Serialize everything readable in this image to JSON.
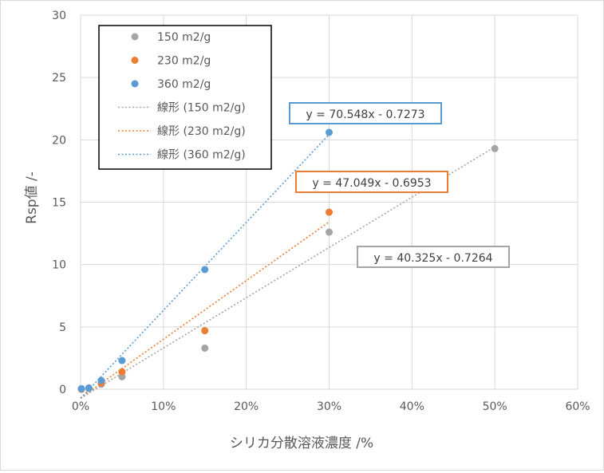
{
  "chart_data": {
    "type": "scatter",
    "title": "",
    "xlabel": "シリカ分散溶液濃度 /%",
    "ylabel": "Rsp値 /-",
    "xlim": [
      0,
      0.6
    ],
    "ylim": [
      0,
      30
    ],
    "x_ticks": [
      0,
      0.1,
      0.2,
      0.3,
      0.4,
      0.5,
      0.6
    ],
    "x_tick_labels": [
      "0%",
      "10%",
      "20%",
      "30%",
      "40%",
      "50%",
      "60%"
    ],
    "y_ticks": [
      0,
      5,
      10,
      15,
      20,
      25,
      30
    ],
    "y_tick_labels": [
      "0",
      "5",
      "10",
      "15",
      "20",
      "25",
      "30"
    ],
    "grid": "vertical and horizontal major gridlines",
    "legend_position": "top-left",
    "series": [
      {
        "name": "150 m2/g",
        "color": "#a5a5a5",
        "points": [
          [
            0.001,
            0.0
          ],
          [
            0.01,
            0.05
          ],
          [
            0.025,
            0.4
          ],
          [
            0.05,
            1.0
          ],
          [
            0.15,
            3.3
          ],
          [
            0.3,
            12.6
          ],
          [
            0.5,
            19.3
          ]
        ]
      },
      {
        "name": "230 m2/g",
        "color": "#ed7d31",
        "points": [
          [
            0.001,
            0.0
          ],
          [
            0.01,
            0.1
          ],
          [
            0.025,
            0.5
          ],
          [
            0.05,
            1.4
          ],
          [
            0.15,
            4.7
          ],
          [
            0.3,
            14.2
          ]
        ]
      },
      {
        "name": "360 m2/g",
        "color": "#5b9bd5",
        "points": [
          [
            0.001,
            0.05
          ],
          [
            0.01,
            0.1
          ],
          [
            0.025,
            0.7
          ],
          [
            0.05,
            2.3
          ],
          [
            0.15,
            9.6
          ],
          [
            0.3,
            20.6
          ]
        ]
      }
    ],
    "trendlines": [
      {
        "name": "線形 (150 m2/g)",
        "color": "#a5a5a5",
        "slope": 40.325,
        "intercept": -0.7264,
        "x_range": [
          0.0,
          0.5
        ],
        "equation": "y = 40.325x - 0.7264"
      },
      {
        "name": "線形 (230 m2/g)",
        "color": "#ed7d31",
        "slope": 47.049,
        "intercept": -0.6953,
        "x_range": [
          0.0,
          0.3
        ],
        "equation": "y = 47.049x - 0.6953"
      },
      {
        "name": "線形 (360 m2/g)",
        "color": "#5b9bd5",
        "slope": 70.548,
        "intercept": -0.7273,
        "x_range": [
          0.0,
          0.3
        ],
        "equation": "y = 70.548x - 0.7273"
      }
    ]
  },
  "colors": {
    "axis_text": "#595959",
    "grid": "#d9d9d9",
    "legend_border": "#000000"
  }
}
